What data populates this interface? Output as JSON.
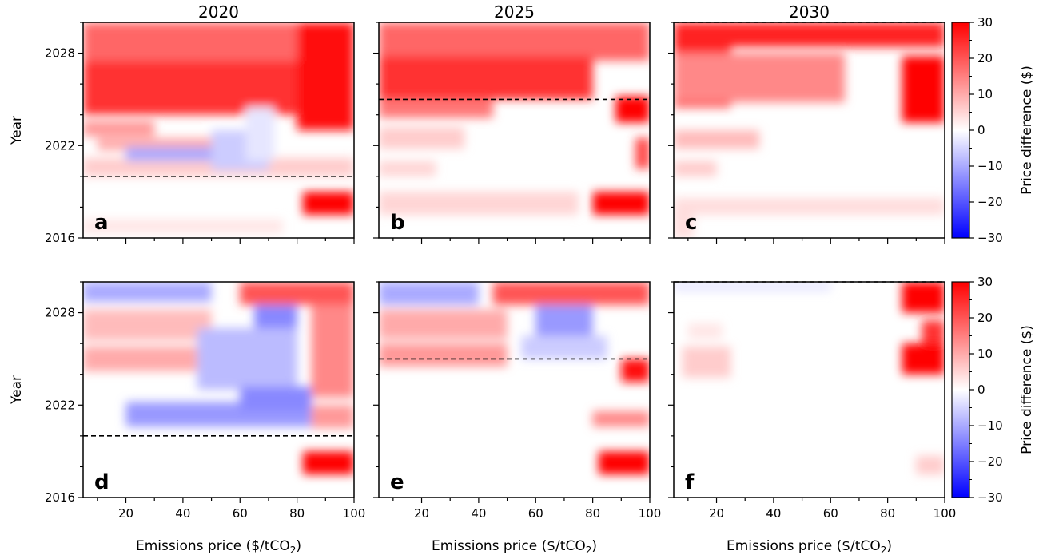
{
  "chart_data": {
    "type": "heatmap",
    "column_titles": [
      "2020",
      "2025",
      "2030"
    ],
    "xlabel_prefix": "Emissions price ($/tCO",
    "xlabel_sub": "2",
    "xlabel_suffix": ")",
    "ylabel": "Year",
    "xlim": [
      5,
      100
    ],
    "ylim": [
      2016,
      2030
    ],
    "xticks": [
      "20",
      "40",
      "60",
      "80",
      "100"
    ],
    "xtick_values": [
      20,
      40,
      60,
      80,
      100
    ],
    "yticks": [
      "2016",
      "2022",
      "2028"
    ],
    "ytick_values": [
      2016,
      2022,
      2028
    ],
    "colorbar": {
      "label": "Price difference ($)",
      "range": [
        -30,
        30
      ],
      "ticks": [
        "30",
        "20",
        "10",
        "0",
        "−10",
        "−20",
        "−30"
      ],
      "tick_values": [
        30,
        20,
        10,
        0,
        -10,
        -20,
        -30
      ],
      "colors": {
        "low": "#0000ff",
        "mid": "#ffffff",
        "high": "#ff0000"
      }
    },
    "panels": [
      {
        "letter": "a",
        "row": 0,
        "col": 0,
        "dashed_year": 2020,
        "blobs": [
          {
            "x0": 5,
            "x1": 100,
            "y0": 2027.5,
            "y1": 2030,
            "v": 18
          },
          {
            "x0": 5,
            "x1": 85,
            "y0": 2024,
            "y1": 2027.5,
            "v": 24
          },
          {
            "x0": 80,
            "x1": 100,
            "y0": 2023,
            "y1": 2030,
            "v": 28
          },
          {
            "x0": 5,
            "x1": 30,
            "y0": 2022.6,
            "y1": 2023.6,
            "v": 12
          },
          {
            "x0": 10,
            "x1": 55,
            "y0": 2021.7,
            "y1": 2022.5,
            "v": 10
          },
          {
            "x0": 5,
            "x1": 100,
            "y0": 2020,
            "y1": 2021.2,
            "v": 6
          },
          {
            "x0": 20,
            "x1": 65,
            "y0": 2021.0,
            "y1": 2021.9,
            "v": -10
          },
          {
            "x0": 50,
            "x1": 70,
            "y0": 2020.4,
            "y1": 2023,
            "v": -6
          },
          {
            "x0": 62,
            "x1": 72,
            "y0": 2021,
            "y1": 2024.5,
            "v": -3
          },
          {
            "x0": 82,
            "x1": 100,
            "y0": 2017.5,
            "y1": 2019,
            "v": 30
          },
          {
            "x0": 5,
            "x1": 75,
            "y0": 2016.3,
            "y1": 2017.2,
            "v": 3
          }
        ]
      },
      {
        "letter": "b",
        "row": 0,
        "col": 1,
        "dashed_year": 2025,
        "blobs": [
          {
            "x0": 5,
            "x1": 100,
            "y0": 2027.5,
            "y1": 2030,
            "v": 18
          },
          {
            "x0": 5,
            "x1": 80,
            "y0": 2025,
            "y1": 2027.8,
            "v": 24
          },
          {
            "x0": 5,
            "x1": 45,
            "y0": 2023.8,
            "y1": 2025,
            "v": 16
          },
          {
            "x0": 88,
            "x1": 100,
            "y0": 2023.5,
            "y1": 2025.2,
            "v": 30
          },
          {
            "x0": 5,
            "x1": 35,
            "y0": 2021.8,
            "y1": 2023.2,
            "v": 6
          },
          {
            "x0": 5,
            "x1": 25,
            "y0": 2020,
            "y1": 2021,
            "v": 5
          },
          {
            "x0": 95,
            "x1": 100,
            "y0": 2020.5,
            "y1": 2022.5,
            "v": 22
          },
          {
            "x0": 5,
            "x1": 75,
            "y0": 2017.5,
            "y1": 2019,
            "v": 5
          },
          {
            "x0": 80,
            "x1": 100,
            "y0": 2017.5,
            "y1": 2019,
            "v": 30
          }
        ]
      },
      {
        "letter": "c",
        "row": 0,
        "col": 2,
        "dashed_year": 2030,
        "blobs": [
          {
            "x0": 5,
            "x1": 100,
            "y0": 2028.4,
            "y1": 2030,
            "v": 26
          },
          {
            "x0": 5,
            "x1": 25,
            "y0": 2024.5,
            "y1": 2029,
            "v": 26
          },
          {
            "x0": 5,
            "x1": 65,
            "y0": 2024.8,
            "y1": 2028,
            "v": 14
          },
          {
            "x0": 85,
            "x1": 100,
            "y0": 2023.5,
            "y1": 2027.8,
            "v": 30
          },
          {
            "x0": 5,
            "x1": 35,
            "y0": 2021.8,
            "y1": 2023,
            "v": 8
          },
          {
            "x0": 5,
            "x1": 20,
            "y0": 2020,
            "y1": 2021,
            "v": 6
          },
          {
            "x0": 5,
            "x1": 100,
            "y0": 2017.5,
            "y1": 2018.6,
            "v": 4
          },
          {
            "x0": 5,
            "x1": 12,
            "y0": 2016,
            "y1": 2017.5,
            "v": 4
          }
        ]
      },
      {
        "letter": "d",
        "row": 1,
        "col": 0,
        "dashed_year": 2020,
        "blobs": [
          {
            "x0": 60,
            "x1": 100,
            "y0": 2028.5,
            "y1": 2030,
            "v": 20
          },
          {
            "x0": 5,
            "x1": 50,
            "y0": 2028.7,
            "y1": 2030,
            "v": -10
          },
          {
            "x0": 5,
            "x1": 50,
            "y0": 2026.2,
            "y1": 2028.2,
            "v": 8
          },
          {
            "x0": 5,
            "x1": 45,
            "y0": 2024.2,
            "y1": 2025.8,
            "v": 10
          },
          {
            "x0": 65,
            "x1": 80,
            "y0": 2026.5,
            "y1": 2028.5,
            "v": -14
          },
          {
            "x0": 45,
            "x1": 80,
            "y0": 2023,
            "y1": 2027,
            "v": -8
          },
          {
            "x0": 20,
            "x1": 85,
            "y0": 2020.6,
            "y1": 2022.2,
            "v": -12
          },
          {
            "x0": 60,
            "x1": 85,
            "y0": 2021.6,
            "y1": 2023.2,
            "v": -14
          },
          {
            "x0": 85,
            "x1": 100,
            "y0": 2022.5,
            "y1": 2028.5,
            "v": 14
          },
          {
            "x0": 85,
            "x1": 100,
            "y0": 2020.5,
            "y1": 2022,
            "v": 12
          },
          {
            "x0": 82,
            "x1": 100,
            "y0": 2017.5,
            "y1": 2019,
            "v": 30
          }
        ]
      },
      {
        "letter": "e",
        "row": 1,
        "col": 1,
        "dashed_year": 2025,
        "blobs": [
          {
            "x0": 45,
            "x1": 100,
            "y0": 2028.5,
            "y1": 2030,
            "v": 20
          },
          {
            "x0": 5,
            "x1": 40,
            "y0": 2028.5,
            "y1": 2030,
            "v": -10
          },
          {
            "x0": 5,
            "x1": 50,
            "y0": 2026.3,
            "y1": 2028.2,
            "v": 10
          },
          {
            "x0": 5,
            "x1": 50,
            "y0": 2024.5,
            "y1": 2026,
            "v": 12
          },
          {
            "x0": 60,
            "x1": 80,
            "y0": 2026.5,
            "y1": 2028.5,
            "v": -12
          },
          {
            "x0": 55,
            "x1": 85,
            "y0": 2025,
            "y1": 2026.5,
            "v": -6
          },
          {
            "x0": 90,
            "x1": 100,
            "y0": 2023.5,
            "y1": 2025,
            "v": 28
          },
          {
            "x0": 80,
            "x1": 100,
            "y0": 2020.6,
            "y1": 2021.6,
            "v": 14
          },
          {
            "x0": 82,
            "x1": 100,
            "y0": 2017.5,
            "y1": 2019,
            "v": 30
          }
        ]
      },
      {
        "letter": "f",
        "row": 1,
        "col": 2,
        "dashed_year": 2030,
        "blobs": [
          {
            "x0": 5,
            "x1": 60,
            "y0": 2029.4,
            "y1": 2030,
            "v": -3
          },
          {
            "x0": 85,
            "x1": 100,
            "y0": 2028,
            "y1": 2030,
            "v": 30
          },
          {
            "x0": 92,
            "x1": 100,
            "y0": 2025.8,
            "y1": 2027.5,
            "v": 24
          },
          {
            "x0": 85,
            "x1": 100,
            "y0": 2024,
            "y1": 2026,
            "v": 30
          },
          {
            "x0": 8,
            "x1": 25,
            "y0": 2023.8,
            "y1": 2025.8,
            "v": 6
          },
          {
            "x0": 10,
            "x1": 22,
            "y0": 2026.3,
            "y1": 2027.3,
            "v": 3
          },
          {
            "x0": 90,
            "x1": 100,
            "y0": 2017.5,
            "y1": 2018.7,
            "v": 6
          }
        ]
      }
    ]
  }
}
